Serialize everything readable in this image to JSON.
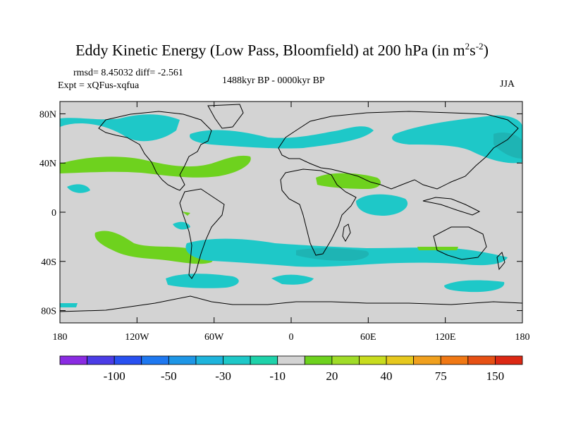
{
  "title": {
    "main": "Eddy Kinetic Energy (Low Pass, Bloomfield) at 200 hPa (in m",
    "sup1": "2",
    "mid": "s",
    "sup2": "-2",
    "close": ")"
  },
  "stats": "rmsd= 8.45032 diff= -2.561",
  "experiment": "Expt = xQFus-xqfua",
  "period": "1488kyr BP - 0000kyr BP",
  "season": "JJA",
  "colors": {
    "background_field": "#d3d3d3",
    "cyan": "#1ec8c8",
    "teal": "#1eb4b4",
    "green": "#6ed21e",
    "yellow_green": "#a0dc28",
    "coast": "#000000"
  },
  "map": {
    "projection": "cylindrical-equidistant",
    "lon_range": [
      -180,
      180
    ],
    "lat_range": [
      -90,
      90
    ],
    "lat_ticks": [
      {
        "value": 80,
        "label": "80N"
      },
      {
        "value": 40,
        "label": "40N"
      },
      {
        "value": 0,
        "label": "0"
      },
      {
        "value": -40,
        "label": "40S"
      },
      {
        "value": -80,
        "label": "80S"
      }
    ],
    "lon_ticks": [
      {
        "value": -180,
        "label": "180"
      },
      {
        "value": -120,
        "label": "120W"
      },
      {
        "value": -60,
        "label": "60W"
      },
      {
        "value": 0,
        "label": "0"
      },
      {
        "value": 60,
        "label": "60E"
      },
      {
        "value": 120,
        "label": "120E"
      },
      {
        "value": 180,
        "label": "180"
      }
    ]
  },
  "colorbar": {
    "colors": [
      "#8a2be2",
      "#4b3ce6",
      "#2850f0",
      "#1e78f0",
      "#1e96e6",
      "#1eb4dc",
      "#1ec8c8",
      "#1ed2aa",
      "#d3d3d3",
      "#6ed21e",
      "#a0dc28",
      "#c8dc1e",
      "#e6c81e",
      "#f0a01e",
      "#f07814",
      "#e65014",
      "#dc2814"
    ],
    "labels": [
      {
        "index": 2,
        "text": "-100"
      },
      {
        "index": 4,
        "text": "-50"
      },
      {
        "index": 6,
        "text": "-30"
      },
      {
        "index": 8,
        "text": "-10"
      },
      {
        "index": 10,
        "text": "20"
      },
      {
        "index": 12,
        "text": "40"
      },
      {
        "index": 14,
        "text": "75"
      },
      {
        "index": 16,
        "text": "150"
      }
    ]
  }
}
